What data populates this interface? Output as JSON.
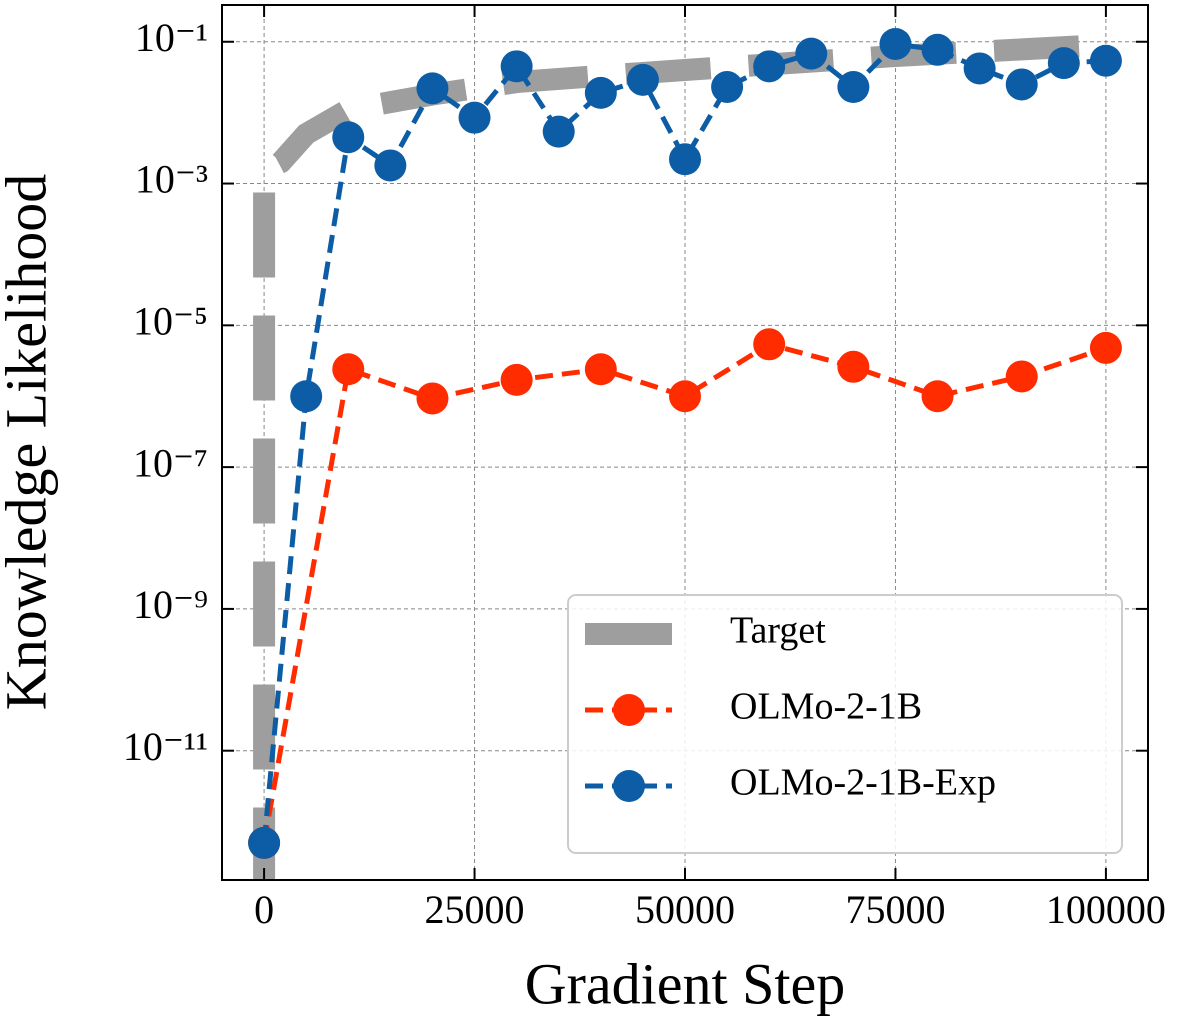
{
  "chart_data": {
    "type": "line",
    "xlabel": "Gradient Step",
    "ylabel": "Knowledge Likelihood",
    "xlim": [
      -5000,
      105000
    ],
    "xticks": [
      0,
      25000,
      50000,
      75000,
      100000
    ],
    "ylim": [
      1.5e-13,
      0.33
    ],
    "yscale": "log",
    "yticks": [
      {
        "value": 0.1,
        "label": "10⁻¹"
      },
      {
        "value": 0.001,
        "label": "10⁻³"
      },
      {
        "value": 1e-05,
        "label": "10⁻⁵"
      },
      {
        "value": 1e-07,
        "label": "10⁻⁷"
      },
      {
        "value": 1e-09,
        "label": "10⁻⁹"
      },
      {
        "value": 1e-11,
        "label": "10⁻¹¹"
      }
    ],
    "grid": true,
    "legend": "lower right",
    "series": [
      {
        "name": "Target",
        "color": "#9e9e9e",
        "marker": "none",
        "x": [
          0,
          0,
          2000,
          5000,
          10000,
          20000,
          30000,
          40000,
          50000,
          60000,
          75000,
          90000,
          100000
        ],
        "values": [
          1e-13,
          0.0015,
          0.002,
          0.005,
          0.011,
          0.018,
          0.027,
          0.033,
          0.04,
          0.048,
          0.063,
          0.078,
          0.09
        ]
      },
      {
        "name": "OLMo-2-1B",
        "color": "#ff2c00",
        "marker": "circle",
        "x": [
          0,
          10000,
          20000,
          30000,
          40000,
          50000,
          60000,
          70000,
          80000,
          90000,
          100000
        ],
        "values": [
          5e-13,
          2.4e-06,
          9.3e-07,
          1.7e-06,
          2.4e-06,
          1e-06,
          5.4e-06,
          2.6e-06,
          1e-06,
          1.9e-06,
          4.8e-06
        ]
      },
      {
        "name": "OLMo-2-1B-Exp",
        "color": "#0c5da5",
        "marker": "circle",
        "x": [
          0,
          5000,
          10000,
          15000,
          20000,
          25000,
          30000,
          35000,
          40000,
          45000,
          50000,
          55000,
          60000,
          65000,
          70000,
          75000,
          80000,
          85000,
          90000,
          95000,
          100000
        ],
        "values": [
          5e-13,
          1e-06,
          0.0045,
          0.0018,
          0.022,
          0.0085,
          0.045,
          0.0054,
          0.019,
          0.029,
          0.0022,
          0.023,
          0.045,
          0.068,
          0.023,
          0.093,
          0.077,
          0.042,
          0.025,
          0.05,
          0.054
        ]
      }
    ]
  }
}
